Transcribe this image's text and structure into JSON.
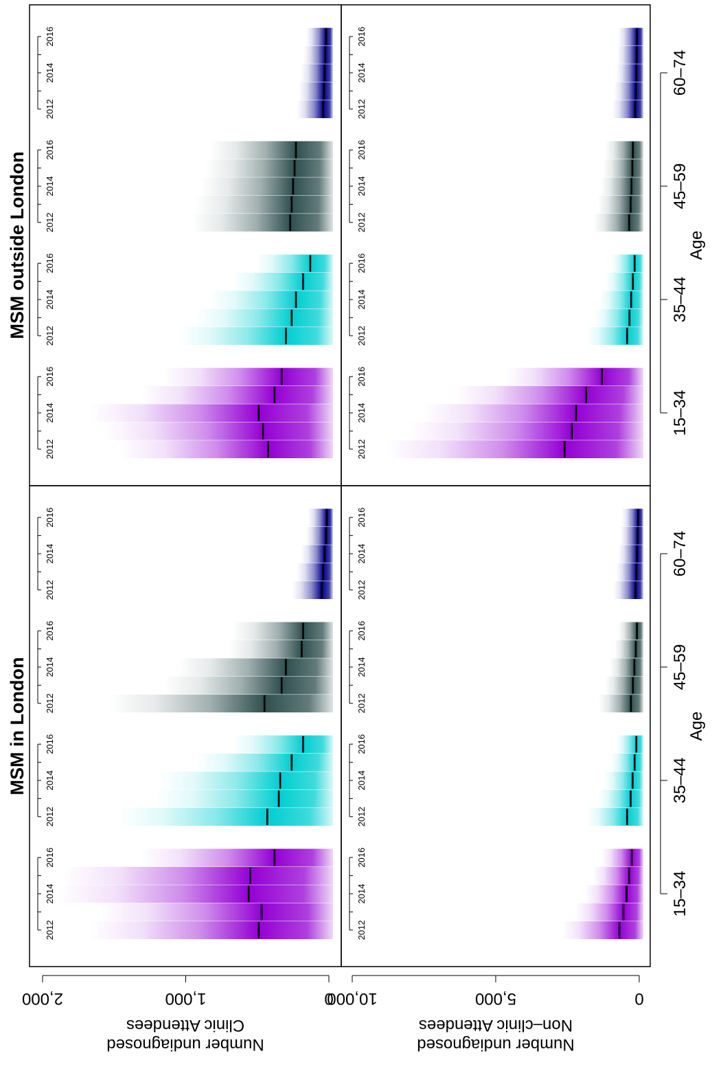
{
  "chart_data": {
    "type": "density-strip",
    "panel_titles": [
      "MSM in London",
      "MSM outside London"
    ],
    "row_ylabels": [
      [
        "Number undiagnosed",
        "Clinic Attendees"
      ],
      [
        "Number undiagnosed",
        "Non–clinic Attendees"
      ]
    ],
    "xlabel": "Age",
    "age_groups": [
      "15–34",
      "35–44",
      "45–59",
      "60–74"
    ],
    "years": [
      2012,
      2013,
      2014,
      2015,
      2016
    ],
    "year_tick_labels": [
      "2012",
      "2014",
      "2016"
    ],
    "rows": [
      {
        "name": "Clinic Attendees",
        "ylim": [
          0,
          2000
        ],
        "yticks": [
          0,
          1000,
          2000
        ],
        "ytick_labels": [
          "0",
          "1,000",
          "2,000"
        ],
        "panels": [
          {
            "title": "MSM in London",
            "medians": {
              "15–34": [
                490,
                470,
                560,
                550,
                380
              ],
              "35–44": [
                430,
                350,
                340,
                260,
                180
              ],
              "45–59": [
                450,
                330,
                300,
                190,
                180
              ],
              "60–74": [
                50,
                40,
                30,
                20,
                15
              ]
            }
          },
          {
            "title": "MSM outside London",
            "medians": {
              "15–34": [
                425,
                460,
                490,
                380,
                330
              ],
              "35–44": [
                300,
                260,
                230,
                180,
                130
              ],
              "45–59": [
                270,
                260,
                250,
                240,
                230
              ],
              "60–74": [
                40,
                35,
                30,
                25,
                20
              ]
            }
          }
        ]
      },
      {
        "name": "Non–clinic Attendees",
        "ylim": [
          0,
          10000
        ],
        "yticks": [
          0,
          5000,
          10000
        ],
        "ytick_labels": [
          "0",
          "5,000",
          "10,000"
        ],
        "panels": [
          {
            "title": "MSM in London",
            "medians": {
              "15–34": [
                690,
                550,
                440,
                350,
                260
              ],
              "35–44": [
                420,
                300,
                230,
                160,
                100
              ],
              "45–59": [
                290,
                220,
                170,
                120,
                80
              ],
              "60–74": [
                130,
                100,
                75,
                55,
                40
              ]
            }
          },
          {
            "title": "MSM outside London",
            "medians": {
              "15–34": [
                2600,
                2350,
                2200,
                1850,
                1300
              ],
              "35–44": [
                420,
                340,
                280,
                220,
                160
              ],
              "45–59": [
                350,
                300,
                270,
                240,
                220
              ],
              "60–74": [
                140,
                120,
                100,
                90,
                80
              ]
            }
          }
        ]
      }
    ],
    "colors": {
      "15–34": "#9400d3",
      "35–44": "#00ced1",
      "45–59": "#2f4f4f",
      "60–74": "#00008b"
    }
  }
}
